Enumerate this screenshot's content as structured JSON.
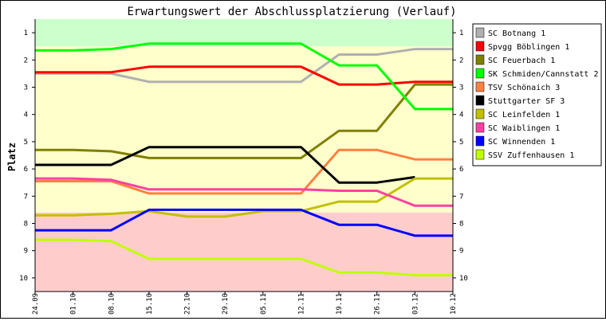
{
  "chart_data": {
    "type": "line",
    "title": "Erwartungswert der Abschlussplatzierung (Verlauf)",
    "xlabel": "",
    "ylabel": "Platz",
    "x": [
      "24.09",
      "01.10",
      "08.10",
      "15.10",
      "22.10",
      "29.10",
      "05.11",
      "12.11",
      "19.11",
      "26.11",
      "03.12",
      "10.12"
    ],
    "yticks": [
      1,
      2,
      3,
      4,
      5,
      6,
      7,
      8,
      9,
      10
    ],
    "ylim": [
      0.5,
      10.5
    ],
    "y_inverted": true,
    "grid": false,
    "legend_position": "right",
    "bands": [
      {
        "from": 0.5,
        "to": 1.5,
        "color": "#ccffcc"
      },
      {
        "from": 1.5,
        "to": 7.6,
        "color": "#ffffcc"
      },
      {
        "from": 7.6,
        "to": 10.5,
        "color": "#ffcccc"
      }
    ],
    "series": [
      {
        "name": "SC Botnang 1",
        "color": "#b0b0b0",
        "values": [
          2.5,
          2.5,
          2.5,
          2.8,
          2.8,
          2.8,
          2.8,
          2.8,
          1.8,
          1.8,
          1.6,
          1.6
        ]
      },
      {
        "name": "Spvgg Böblingen 1",
        "color": "#ff0000",
        "values": [
          2.45,
          2.45,
          2.45,
          2.25,
          2.25,
          2.25,
          2.25,
          2.25,
          2.9,
          2.9,
          2.8,
          2.8
        ]
      },
      {
        "name": "SC Feuerbach 1",
        "color": "#808000",
        "values": [
          5.3,
          5.3,
          5.35,
          5.6,
          5.6,
          5.6,
          5.6,
          5.6,
          4.6,
          4.6,
          2.9,
          2.9
        ]
      },
      {
        "name": "SK Schmiden/Cannstatt 2",
        "color": "#00ff00",
        "values": [
          1.65,
          1.65,
          1.6,
          1.4,
          1.4,
          1.4,
          1.4,
          1.4,
          2.2,
          2.2,
          3.8,
          3.8
        ]
      },
      {
        "name": "TSV Schönaich 3",
        "color": "#ff8040",
        "values": [
          6.45,
          6.45,
          6.45,
          6.9,
          6.9,
          6.9,
          6.9,
          6.9,
          5.3,
          5.3,
          5.65,
          5.65
        ]
      },
      {
        "name": "Stuttgarter SF 3",
        "color": "#000000",
        "values": [
          5.85,
          5.85,
          5.85,
          5.2,
          5.2,
          5.2,
          5.2,
          5.2,
          6.5,
          6.5,
          6.3,
          null
        ]
      },
      {
        "name": "SC Leinfelden 1",
        "color": "#c0c000",
        "values": [
          7.7,
          7.7,
          7.65,
          7.55,
          7.75,
          7.75,
          7.55,
          7.55,
          7.2,
          7.2,
          6.35,
          6.35
        ]
      },
      {
        "name": "SC Waiblingen 1",
        "color": "#ff40a0",
        "values": [
          6.35,
          6.35,
          6.4,
          6.75,
          6.75,
          6.75,
          6.75,
          6.75,
          6.8,
          6.8,
          7.35,
          7.35
        ]
      },
      {
        "name": "SC Winnenden 1",
        "color": "#0000ff",
        "values": [
          8.25,
          8.25,
          8.25,
          7.5,
          7.5,
          7.5,
          7.5,
          7.5,
          8.05,
          8.05,
          8.45,
          8.45
        ]
      },
      {
        "name": "SSV Zuffenhausen 1",
        "color": "#c0ff00",
        "values": [
          8.6,
          8.6,
          8.65,
          9.3,
          9.3,
          9.3,
          9.3,
          9.3,
          9.8,
          9.8,
          9.9,
          9.9
        ]
      }
    ]
  }
}
